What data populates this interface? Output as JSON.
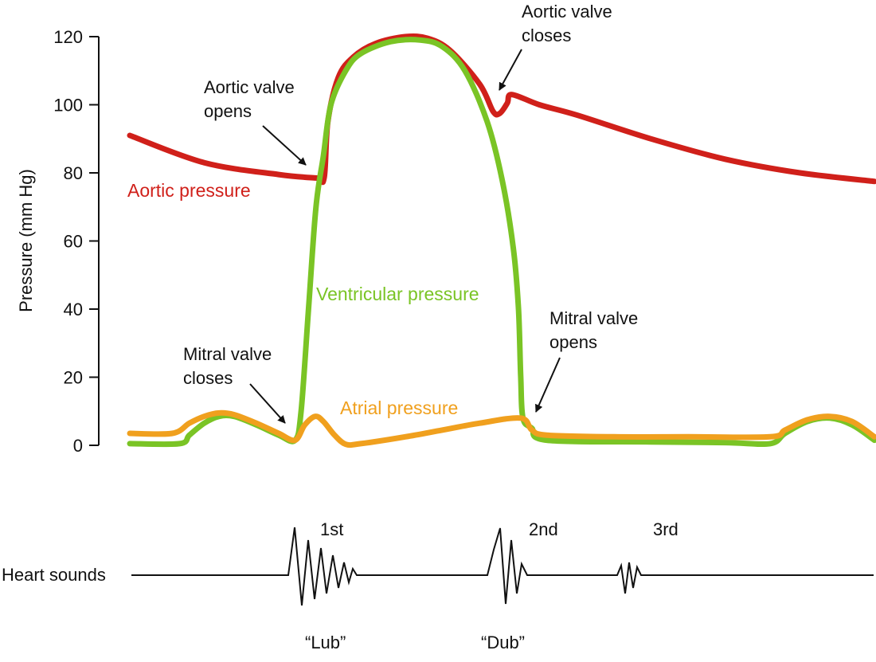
{
  "chart_data": {
    "type": "line",
    "ylabel": "Pressure (mm Hg)",
    "ylim": [
      0,
      120
    ],
    "yticks": [
      0,
      20,
      40,
      60,
      80,
      100,
      120
    ],
    "xlim": [
      0,
      100
    ],
    "series": [
      {
        "name": "Aortic pressure",
        "color": "#d0201a",
        "points": [
          [
            0,
            91
          ],
          [
            10,
            83
          ],
          [
            20,
            79.5
          ],
          [
            25,
            78.5
          ],
          [
            26.1,
            78.5
          ],
          [
            26.6,
            95
          ],
          [
            28,
            108
          ],
          [
            30,
            114
          ],
          [
            33,
            118
          ],
          [
            37,
            120
          ],
          [
            40,
            119.5
          ],
          [
            43,
            116
          ],
          [
            47,
            106
          ],
          [
            48.8,
            98
          ],
          [
            49.7,
            97.5
          ],
          [
            50.7,
            100.5
          ],
          [
            51.3,
            103
          ],
          [
            55,
            100
          ],
          [
            60,
            97
          ],
          [
            70,
            90
          ],
          [
            80,
            84
          ],
          [
            90,
            80
          ],
          [
            100,
            77.5
          ]
        ]
      },
      {
        "name": "Ventricular pressure",
        "color": "#7ac425",
        "points": [
          [
            0,
            0.5
          ],
          [
            6.7,
            0.5
          ],
          [
            8,
            3
          ],
          [
            10,
            6.5
          ],
          [
            12,
            8.5
          ],
          [
            14,
            8.5
          ],
          [
            17,
            6
          ],
          [
            20,
            3
          ],
          [
            22.2,
            1.5
          ],
          [
            23,
            10
          ],
          [
            24,
            40
          ],
          [
            25,
            70
          ],
          [
            26,
            85
          ],
          [
            27,
            100
          ],
          [
            29,
            110
          ],
          [
            31,
            115
          ],
          [
            35,
            118.5
          ],
          [
            39,
            119
          ],
          [
            42,
            117
          ],
          [
            45,
            110
          ],
          [
            48,
            95
          ],
          [
            50,
            78
          ],
          [
            51.5,
            58
          ],
          [
            52.2,
            40
          ],
          [
            52.5,
            20
          ],
          [
            52.8,
            8
          ],
          [
            54,
            5
          ],
          [
            56,
            1.5
          ],
          [
            70,
            1
          ],
          [
            80,
            0.8
          ],
          [
            86,
            0.5
          ],
          [
            88,
            3.5
          ],
          [
            91,
            7
          ],
          [
            94,
            8
          ],
          [
            97,
            6
          ],
          [
            100,
            1.5
          ]
        ]
      },
      {
        "name": "Atrial pressure",
        "color": "#f0a01e",
        "points": [
          [
            0,
            3.5
          ],
          [
            5.7,
            3.5
          ],
          [
            8,
            6.5
          ],
          [
            10,
            8.5
          ],
          [
            12,
            9.5
          ],
          [
            14,
            9
          ],
          [
            17,
            6.5
          ],
          [
            20,
            3.5
          ],
          [
            22.2,
            1.5
          ],
          [
            23.5,
            6
          ],
          [
            24.9,
            8.5
          ],
          [
            26,
            7
          ],
          [
            27.5,
            3
          ],
          [
            29,
            0.3
          ],
          [
            31,
            0.5
          ],
          [
            37,
            2.5
          ],
          [
            42,
            4.5
          ],
          [
            47,
            6.5
          ],
          [
            52.5,
            8
          ],
          [
            54,
            4.5
          ],
          [
            56,
            3
          ],
          [
            65,
            2.5
          ],
          [
            75,
            2.5
          ],
          [
            86,
            2.5
          ],
          [
            88,
            4.5
          ],
          [
            91,
            7.5
          ],
          [
            94,
            8.5
          ],
          [
            97,
            7
          ],
          [
            100,
            2.5
          ]
        ]
      }
    ],
    "series_labels": [
      {
        "series": "Aortic pressure",
        "text": "Aortic pressure"
      },
      {
        "series": "Ventricular pressure",
        "text": "Ventricular pressure"
      },
      {
        "series": "Atrial pressure",
        "text": "Atrial pressure"
      }
    ],
    "annotations": [
      {
        "lines": [
          "Aortic valve",
          "closes"
        ]
      },
      {
        "lines": [
          "Aortic valve",
          "opens"
        ]
      },
      {
        "lines": [
          "Mitral valve",
          "closes"
        ]
      },
      {
        "lines": [
          "Mitral valve",
          "opens"
        ]
      }
    ],
    "heart_sounds": {
      "label": "Heart sounds",
      "sounds": [
        {
          "name": "1st",
          "syllable": "“Lub”"
        },
        {
          "name": "2nd",
          "syllable": "“Dub”"
        },
        {
          "name": "3rd",
          "syllable": ""
        }
      ]
    }
  }
}
